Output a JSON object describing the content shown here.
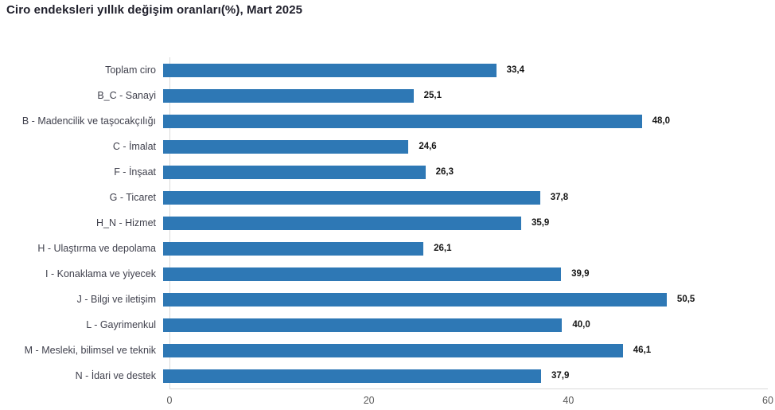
{
  "title": "Ciro endeksleri yıllık değişim oranları(%), Mart 2025",
  "colors": {
    "bar": "#2e78b5",
    "axis_line": "#d9d9d9",
    "title_text": "#1f1f2b",
    "category_text": "#40414d",
    "value_text": "#141414",
    "tick_text": "#595959"
  },
  "chart_data": {
    "type": "bar",
    "orientation": "horizontal",
    "title": "Ciro endeksleri yıllık değişim oranları(%), Mart 2025",
    "categories": [
      "Toplam ciro",
      "B_C - Sanayi",
      "B - Madencilik ve taşocakçılığı",
      "C - İmalat",
      "F - İnşaat",
      "G - Ticaret",
      "H_N - Hizmet",
      "H - Ulaştırma ve depolama",
      "I - Konaklama ve yiyecek",
      "J - Bilgi ve iletişim",
      "L - Gayrimenkul",
      "M - Mesleki, bilimsel ve teknik",
      "N - İdari ve destek"
    ],
    "values": [
      33.4,
      25.1,
      48.0,
      24.6,
      26.3,
      37.8,
      35.9,
      26.1,
      39.9,
      50.5,
      40.0,
      46.1,
      37.9
    ],
    "value_labels": [
      "33,4",
      "25,1",
      "48,0",
      "24,6",
      "26,3",
      "37,8",
      "35,9",
      "26,1",
      "39,9",
      "50,5",
      "40,0",
      "46,1",
      "37,9"
    ],
    "xlabel": "",
    "ylabel": "",
    "xlim": [
      0,
      60
    ],
    "x_ticks": [
      "0",
      "20",
      "40",
      "60"
    ],
    "grid": false,
    "legend": false
  }
}
